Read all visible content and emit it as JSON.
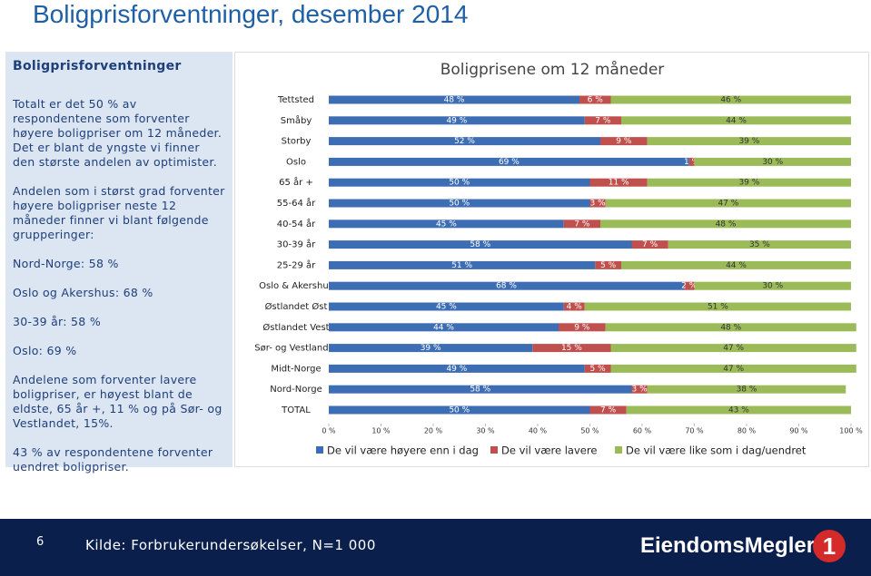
{
  "slide": {
    "title": "Boligprisforventninger, desember 2014",
    "panel": {
      "heading": "Boligprisforventninger",
      "paragraphs": [
        "Totalt er det 50 % av respondentene som forventer høyere boligpriser om 12 måneder. Det er blant de yngste vi finner den største andelen av optimister.",
        "Andelen som i størst grad forventer høyere boligpriser neste 12 måneder finner vi blant følgende grupperinger:",
        "Nord-Norge: 58 %",
        "Oslo og Akershus: 68 %",
        "30-39 år: 58 %",
        "Oslo: 69 %",
        "Andelene som forventer lavere boligpriser, er høyest blant de eldste, 65 år +, 11 % og på Sør- og Vestlandet, 15%.",
        "43 % av respondentene forventer uendret boligpriser."
      ]
    },
    "footer": {
      "page": "6",
      "source": "Kilde: Forbrukerundersøkelser, N=1 000",
      "logo": "EiendomsMegler",
      "logo_mark": "1"
    }
  },
  "chart_data": {
    "type": "stacked-bar-horizontal",
    "title": "Boligprisene om 12 måneder",
    "categories": [
      "Tettsted",
      "Småby",
      "Storby",
      "Oslo",
      "65 år +",
      "55-64 år",
      "40-54 år",
      "30-39 år",
      "25-29 år",
      "Oslo & Akershus",
      "Østlandet Øst",
      "Østlandet Vest",
      "Sør- og Vestlandet",
      "Midt-Norge",
      "Nord-Norge",
      "TOTAL"
    ],
    "series": [
      {
        "name": "De vil være høyere enn i dag",
        "color": "#3d6db3",
        "values": [
          48,
          49,
          52,
          69,
          50,
          50,
          45,
          58,
          51,
          68,
          45,
          44,
          39,
          49,
          58,
          50
        ],
        "value_labels": [
          "48 %",
          "49 %",
          "52 %",
          "69 %",
          "50 %",
          "50 %",
          "45 %",
          "58 %",
          "51 %",
          "68 %",
          "45 %",
          "44 %",
          "39 %",
          "49 %",
          "58 %",
          "50 %"
        ]
      },
      {
        "name": "De vil være lavere",
        "color": "#c0504d",
        "values": [
          6,
          7,
          9,
          1,
          11,
          3,
          7,
          7,
          5,
          2,
          4,
          9,
          15,
          5,
          3,
          7
        ],
        "value_labels": [
          "6 %",
          "7 %",
          "9 %",
          "1 %",
          "11 %",
          "3 %",
          "7 %",
          "7 %",
          "5 %",
          "2 %",
          "4 %",
          "9 %",
          "15 %",
          "5 %",
          "3 %",
          "7 %"
        ]
      },
      {
        "name": "De vil være like som i dag/uendret",
        "color": "#9bbb59",
        "values": [
          46,
          44,
          39,
          30,
          39,
          47,
          48,
          35,
          44,
          30,
          51,
          48,
          47,
          47,
          38,
          43
        ],
        "value_labels": [
          "46 %",
          "44 %",
          "39 %",
          "30 %",
          "39 %",
          "47 %",
          "48 %",
          "35 %",
          "44 %",
          "30 %",
          "51 %",
          "48 %",
          "47 %",
          "47 %",
          "38 %",
          "43 %"
        ]
      }
    ],
    "xlim": [
      0,
      100
    ],
    "xticks": [
      {
        "value": 0,
        "label": "0 %"
      },
      {
        "value": 10,
        "label": "10 %"
      },
      {
        "value": 20,
        "label": "20 %"
      },
      {
        "value": 30,
        "label": "30 %"
      },
      {
        "value": 40,
        "label": "40 %"
      },
      {
        "value": 50,
        "label": "50 %"
      },
      {
        "value": 60,
        "label": "60 %"
      },
      {
        "value": 70,
        "label": "70 %"
      },
      {
        "value": 80,
        "label": "80 %"
      },
      {
        "value": 90,
        "label": "90 %"
      },
      {
        "value": 100,
        "label": "100 %"
      }
    ],
    "legend": "bottom"
  }
}
